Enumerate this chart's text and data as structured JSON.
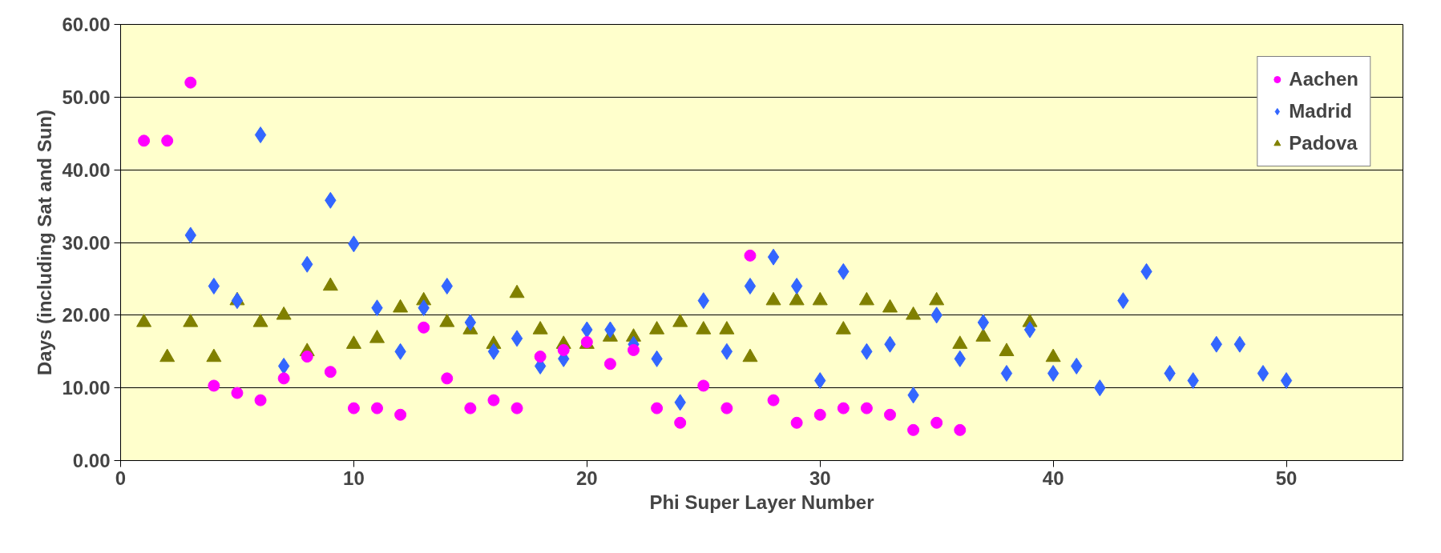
{
  "chart_data": {
    "type": "scatter",
    "xlabel": "Phi Super Layer Number",
    "ylabel": "Days (including Sat and Sun)",
    "xlim": [
      0,
      55
    ],
    "xticks": [
      0,
      10,
      20,
      30,
      40,
      50
    ],
    "ylim": [
      0,
      60
    ],
    "yticks": [
      {
        "value": 0,
        "label": "0.00"
      },
      {
        "value": 10,
        "label": "10.00"
      },
      {
        "value": 20,
        "label": "20.00"
      },
      {
        "value": 30,
        "label": "30.00"
      },
      {
        "value": 40,
        "label": "40.00"
      },
      {
        "value": 50,
        "label": "50.00"
      },
      {
        "value": 60,
        "label": "60.00"
      }
    ],
    "grid": "y",
    "legend": "top right",
    "series": [
      {
        "name": "Aachen",
        "color": "#ff00ff",
        "marker": "circle",
        "x": [
          1,
          2,
          3,
          4,
          5,
          6,
          7,
          8,
          9,
          10,
          11,
          12,
          13,
          14,
          15,
          16,
          17,
          18,
          19,
          20,
          21,
          22,
          23,
          24,
          25,
          26,
          27,
          28,
          29,
          30,
          31,
          32,
          33,
          34,
          35,
          36
        ],
        "values": [
          44,
          44,
          52,
          10.3,
          9.3,
          8.3,
          11.3,
          14.3,
          12.2,
          7.2,
          7.2,
          6.3,
          18.3,
          11.3,
          7.2,
          8.3,
          7.2,
          14.3,
          15.2,
          16.3,
          13.3,
          15.2,
          7.2,
          5.2,
          10.3,
          7.2,
          28.2,
          8.3,
          5.2,
          6.3,
          7.2,
          7.2,
          6.3,
          4.2,
          5.2,
          4.2
        ]
      },
      {
        "name": "Madrid",
        "color": "#3366ff",
        "marker": "diamond",
        "x": [
          3,
          4,
          5,
          6,
          7,
          8,
          9,
          10,
          11,
          12,
          13,
          14,
          15,
          16,
          17,
          18,
          19,
          20,
          21,
          22,
          23,
          24,
          25,
          26,
          27,
          28,
          29,
          30,
          31,
          32,
          33,
          34,
          35,
          36,
          37,
          38,
          39,
          40,
          41,
          42,
          43,
          44,
          45,
          46,
          47,
          48,
          49,
          50
        ],
        "values": [
          31,
          24,
          22,
          44.8,
          13,
          27,
          35.8,
          29.8,
          21,
          15,
          21,
          24,
          19,
          15,
          16.8,
          13,
          14,
          18,
          18,
          16,
          14,
          8,
          22,
          15,
          24,
          28,
          24,
          11,
          26,
          15,
          16,
          9,
          20,
          14,
          19,
          12,
          18,
          12,
          13,
          10,
          22,
          26,
          12,
          11,
          16,
          16,
          12,
          11
        ]
      },
      {
        "name": "Padova",
        "color": "#808000",
        "marker": "triangle",
        "x": [
          1,
          2,
          3,
          4,
          5,
          6,
          7,
          8,
          9,
          10,
          11,
          12,
          13,
          14,
          15,
          16,
          17,
          18,
          19,
          20,
          21,
          22,
          23,
          24,
          25,
          26,
          27,
          28,
          29,
          30,
          31,
          32,
          33,
          34,
          35,
          36,
          37,
          38,
          39,
          40
        ],
        "values": [
          19,
          14.2,
          19,
          14.2,
          22,
          19,
          20,
          15,
          24,
          16,
          16.8,
          21,
          22,
          19,
          18,
          16,
          23,
          18,
          16,
          16,
          17,
          17,
          18,
          19,
          18,
          18,
          14.2,
          22,
          22,
          22,
          18,
          22,
          21,
          20,
          22,
          16,
          17,
          15,
          19,
          14.2
        ]
      }
    ]
  }
}
